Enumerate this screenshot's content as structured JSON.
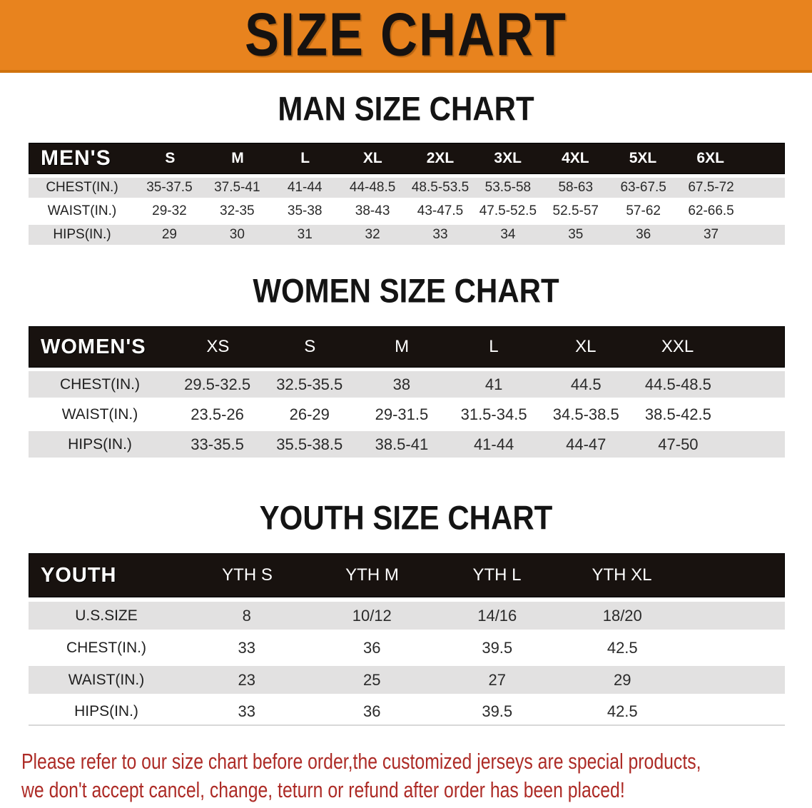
{
  "banner": {
    "title": "SIZE CHART"
  },
  "colors": {
    "banner_bg": "#E8831E",
    "header_bar_bg": "#18120F",
    "header_bar_text": "#FFFFFF",
    "row_stripe": "#E2E1E1",
    "disclaimer_text": "#AD2B26"
  },
  "sections": [
    {
      "heading": "MAN SIZE CHART",
      "header_label": "MEN'S",
      "columns": [
        "S",
        "M",
        "L",
        "XL",
        "2XL",
        "3XL",
        "4XL",
        "5XL",
        "6XL"
      ],
      "rows": [
        {
          "label": "CHEST(IN.)",
          "values": [
            "35-37.5",
            "37.5-41",
            "41-44",
            "44-48.5",
            "48.5-53.5",
            "53.5-58",
            "58-63",
            "63-67.5",
            "67.5-72"
          ]
        },
        {
          "label": "WAIST(IN.)",
          "values": [
            "29-32",
            "32-35",
            "35-38",
            "38-43",
            "43-47.5",
            "47.5-52.5",
            "52.5-57",
            "57-62",
            "62-66.5"
          ]
        },
        {
          "label": "HIPS(IN.)",
          "values": [
            "29",
            "30",
            "31",
            "32",
            "33",
            "34",
            "35",
            "36",
            "37"
          ]
        }
      ]
    },
    {
      "heading": "WOMEN SIZE CHART",
      "header_label": "WOMEN'S",
      "columns": [
        "XS",
        "S",
        "M",
        "L",
        "XL",
        "XXL"
      ],
      "rows": [
        {
          "label": "CHEST(IN.)",
          "values": [
            "29.5-32.5",
            "32.5-35.5",
            "38",
            "41",
            "44.5",
            "44.5-48.5"
          ]
        },
        {
          "label": "WAIST(IN.)",
          "values": [
            "23.5-26",
            "26-29",
            "29-31.5",
            "31.5-34.5",
            "34.5-38.5",
            "38.5-42.5"
          ]
        },
        {
          "label": "HIPS(IN.)",
          "values": [
            "33-35.5",
            "35.5-38.5",
            "38.5-41",
            "41-44",
            "44-47",
            "47-50"
          ]
        }
      ]
    },
    {
      "heading": "YOUTH SIZE CHART",
      "header_label": "YOUTH",
      "columns": [
        "YTH S",
        "YTH M",
        "YTH L",
        "YTH XL"
      ],
      "rows": [
        {
          "label": "U.S.SIZE",
          "values": [
            "8",
            "10/12",
            "14/16",
            "18/20"
          ]
        },
        {
          "label": "CHEST(IN.)",
          "values": [
            "33",
            "36",
            "39.5",
            "42.5"
          ]
        },
        {
          "label": "WAIST(IN.)",
          "values": [
            "23",
            "25",
            "27",
            "29"
          ]
        },
        {
          "label": "HIPS(IN.)",
          "values": [
            "33",
            "36",
            "39.5",
            "42.5"
          ]
        }
      ]
    }
  ],
  "disclaimer": {
    "line1": "Please refer to our size chart before order,the customized jerseys are special products,",
    "line2": "we don't accept cancel, change, teturn or refund after order has been placed!"
  }
}
